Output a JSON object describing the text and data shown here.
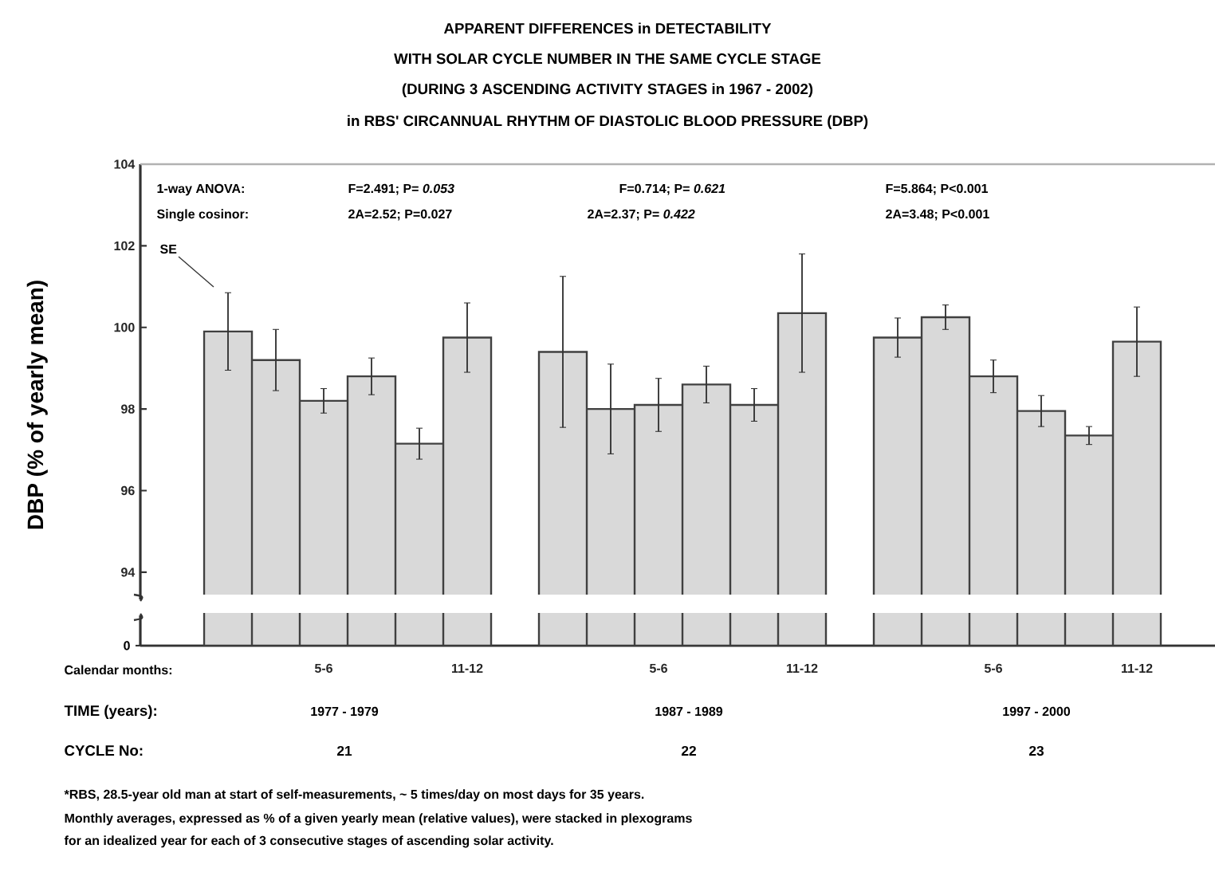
{
  "chart_data": {
    "type": "bar",
    "title": "APPARENT DIFFERENCES in DETECTABILITY",
    "subtitle": "WITH SOLAR CYCLE NUMBER IN THE SAME CYCLE STAGE",
    "ylabel": "DBP (% of yearly mean)",
    "xlabel": "Calendar months:",
    "categories": [
      null,
      null,
      "5-6",
      null,
      null,
      "11-12",
      null,
      null,
      null,
      "5-6",
      null,
      null,
      "11-12",
      null,
      null,
      null,
      "5-6",
      null,
      null,
      "11-12"
    ],
    "values": [
      99.9,
      99.2,
      98.2,
      98.8,
      97.15,
      99.75,
      null,
      99.4,
      98.0,
      98.1,
      98.6,
      98.1,
      100.35,
      null,
      99.75,
      100.25,
      98.8,
      97.95,
      97.35,
      99.65
    ],
    "errors": [
      0.95,
      0.75,
      0.3,
      0.45,
      0.38,
      0.85,
      null,
      1.85,
      1.1,
      0.65,
      0.45,
      0.4,
      1.45,
      null,
      0.48,
      0.3,
      0.4,
      0.38,
      0.22,
      0.85
    ],
    "color": "#d9d9d9",
    "ylim": [
      92.2,
      104
    ],
    "yticks": [
      94,
      96,
      98,
      100,
      102,
      104
    ],
    "annotations": [
      "(DURING 3 ASCENDING ACTIVITY STAGES in 1967 - 2002)",
      "in RBS' CIRCANNUAL RHYTHM OF DIASTOLIC BLOOD PRESSURE (DBP)",
      "1-way ANOVA:",
      "F=2.491; P= *0.053*",
      "F=0.714; P= *0.621*",
      "F=5.864; P<0.001",
      "Single cosinor:",
      "2A=2.52; P=0.027",
      "2A=2.37; P= *0.422*",
      "2A=3.48; P<0.001",
      "SE",
      "TIME (years):",
      "1977 - 1979",
      "1987 - 1989",
      "1997 - 2000",
      "CYCLE No:",
      "21",
      "22",
      "23",
      "*RBS, 28.5-year old man at start of self-measurements, ~ 5 times/day on most days for 35 years.",
      "Monthly averages, expressed as % of a given yearly mean (relative values), were stacked in plexograms",
      "for an idealized year for each of 3 consecutive stages of ascending solar activity.",
      "0"
    ]
  }
}
